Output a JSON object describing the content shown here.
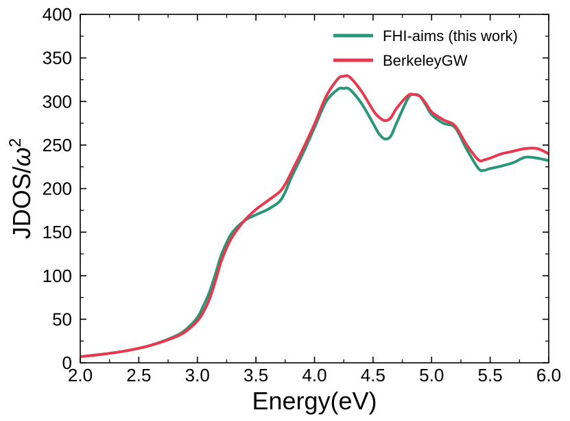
{
  "chart_data": {
    "type": "line",
    "title": "",
    "xlabel": "Energy(eV)",
    "ylabel_main": "JDOS/",
    "ylabel_symbol": "ω",
    "ylabel_exp": "2",
    "xlim": [
      2.0,
      6.0
    ],
    "ylim": [
      0,
      400
    ],
    "xticks": [
      2.0,
      2.5,
      3.0,
      3.5,
      4.0,
      4.5,
      5.0,
      5.5,
      6.0
    ],
    "xtick_labels": [
      "2.0",
      "2.5",
      "3.0",
      "3.5",
      "4.0",
      "4.5",
      "5.0",
      "5.5",
      "6.0"
    ],
    "yticks": [
      0,
      50,
      100,
      150,
      200,
      250,
      300,
      350,
      400
    ],
    "ytick_labels": [
      "0",
      "50",
      "100",
      "150",
      "200",
      "250",
      "300",
      "350",
      "400"
    ],
    "legend_position": "top-right",
    "grid": false,
    "series": [
      {
        "name": "FHI-aims (this work)",
        "color": "#2a9678",
        "x": [
          2.0,
          2.2,
          2.4,
          2.6,
          2.8,
          2.9,
          3.0,
          3.05,
          3.1,
          3.15,
          3.2,
          3.25,
          3.3,
          3.4,
          3.5,
          3.6,
          3.7,
          3.75,
          3.8,
          3.9,
          4.0,
          4.1,
          4.2,
          4.25,
          4.3,
          4.4,
          4.5,
          4.55,
          4.6,
          4.65,
          4.7,
          4.8,
          4.85,
          4.9,
          4.95,
          5.0,
          5.1,
          5.2,
          5.3,
          5.4,
          5.45,
          5.5,
          5.6,
          5.7,
          5.8,
          5.9,
          6.0
        ],
        "y": [
          7,
          10,
          14,
          20,
          30,
          38,
          52,
          65,
          80,
          100,
          122,
          138,
          150,
          163,
          170,
          176,
          185,
          196,
          212,
          240,
          270,
          300,
          314,
          315,
          314,
          298,
          275,
          263,
          257,
          260,
          275,
          304,
          308,
          306,
          296,
          285,
          275,
          270,
          245,
          223,
          221,
          223,
          226,
          230,
          236,
          235,
          232
        ]
      },
      {
        "name": "BerkeleyGW",
        "color": "#e8384f",
        "x": [
          2.0,
          2.2,
          2.4,
          2.6,
          2.8,
          2.9,
          3.0,
          3.05,
          3.1,
          3.15,
          3.2,
          3.25,
          3.3,
          3.4,
          3.5,
          3.6,
          3.7,
          3.75,
          3.8,
          3.9,
          4.0,
          4.1,
          4.2,
          4.25,
          4.3,
          4.4,
          4.5,
          4.55,
          4.6,
          4.65,
          4.7,
          4.8,
          4.85,
          4.9,
          4.95,
          5.0,
          5.1,
          5.2,
          5.3,
          5.4,
          5.45,
          5.5,
          5.6,
          5.7,
          5.8,
          5.9,
          6.0
        ],
        "y": [
          7,
          10,
          14,
          20,
          29,
          36,
          48,
          58,
          72,
          92,
          115,
          132,
          145,
          163,
          176,
          186,
          196,
          205,
          218,
          245,
          274,
          306,
          326,
          329,
          328,
          312,
          290,
          282,
          278,
          281,
          292,
          307,
          308,
          306,
          298,
          288,
          279,
          272,
          250,
          233,
          233,
          235,
          240,
          243,
          246,
          246,
          240
        ]
      }
    ]
  }
}
